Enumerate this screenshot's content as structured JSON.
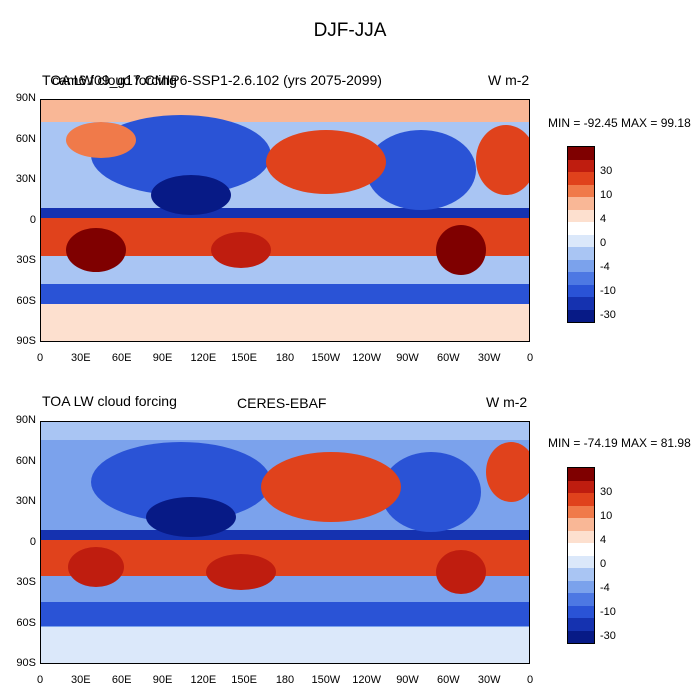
{
  "figure": {
    "title": "DJF-JJA"
  },
  "panels": [
    {
      "left_title": "TOA LW cloud forcing",
      "center_title": "cam6.f09_g17.CMIP6-SSP1-2.6.102 (yrs 2075-2099)",
      "units": "W m-2",
      "min_max": "MIN = -92.45 MAX =  99.18"
    },
    {
      "left_title": "TOA LW cloud forcing",
      "center_title": "CERES-EBAF",
      "units": "W m-2",
      "min_max": "MIN = -74.19 MAX =  81.98"
    }
  ],
  "lat_ticks": [
    "90N",
    "60N",
    "30N",
    "0",
    "30S",
    "60S",
    "90S"
  ],
  "lon_ticks": [
    "0",
    "30E",
    "60E",
    "90E",
    "120E",
    "150E",
    "180",
    "150W",
    "120W",
    "90W",
    "60W",
    "30W",
    "0"
  ],
  "colorbar": {
    "labels": [
      "30",
      "10",
      "4",
      "0",
      "-4",
      "-10",
      "-30"
    ],
    "colors": [
      "#7f0000",
      "#bf1d0f",
      "#e0421c",
      "#f07a4a",
      "#f9b796",
      "#fde0cf",
      "#ffffff",
      "#dbe8fa",
      "#a9c5f3",
      "#7ba2ec",
      "#4d78e3",
      "#2a53d6",
      "#1532b0",
      "#071a86"
    ]
  }
}
